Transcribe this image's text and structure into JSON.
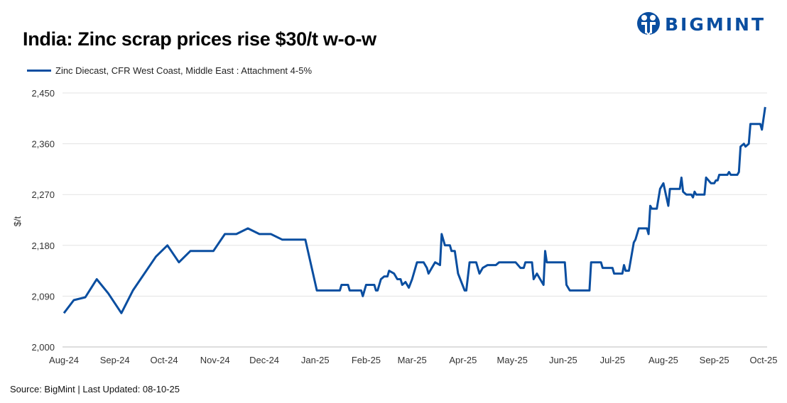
{
  "brand": {
    "name": "BIGMINT",
    "color": "#0a4ea0"
  },
  "footer": {
    "source": "Source: BigMint | Last Updated: 08-10-25"
  },
  "chart_data": {
    "type": "line",
    "title": "India: Zinc scrap prices rise $30/t w-o-w",
    "ylabel": "$/t",
    "xlabel": "",
    "ylim": [
      2000,
      2450
    ],
    "yticks": [
      2000,
      2090,
      2180,
      2270,
      2360,
      2450
    ],
    "ytick_labels": [
      "2,000",
      "2,090",
      "2,180",
      "2,270",
      "2,360",
      "2,450"
    ],
    "xlim": [
      "2024-08-01",
      "2025-10-01"
    ],
    "xticks": [
      "2024-08-01",
      "2024-09-01",
      "2024-10-01",
      "2024-11-01",
      "2024-12-01",
      "2025-01-01",
      "2025-02-01",
      "2025-03-01",
      "2025-04-01",
      "2025-05-01",
      "2025-06-01",
      "2025-07-01",
      "2025-08-01",
      "2025-09-01",
      "2025-10-01"
    ],
    "xtick_labels": [
      "Aug-24",
      "Sep-24",
      "Oct-24",
      "Nov-24",
      "Dec-24",
      "Jan-25",
      "Feb-25",
      "Mar-25",
      "Apr-25",
      "May-25",
      "Jun-25",
      "Jul-25",
      "Aug-25",
      "Sep-25",
      "Oct-25"
    ],
    "grid": "horizontal",
    "legend_position": "top-left",
    "series": [
      {
        "name": "Zinc Diecast, CFR West Coast, Middle East : Attachment 4-5%",
        "color": "#0a4ea0",
        "points": [
          [
            "2024-08-01",
            2060
          ],
          [
            "2024-08-07",
            2083
          ],
          [
            "2024-08-14",
            2088
          ],
          [
            "2024-08-21",
            2120
          ],
          [
            "2024-08-28",
            2095
          ],
          [
            "2024-09-05",
            2060
          ],
          [
            "2024-09-12",
            2100
          ],
          [
            "2024-09-26",
            2160
          ],
          [
            "2024-10-03",
            2180
          ],
          [
            "2024-10-10",
            2150
          ],
          [
            "2024-10-17",
            2170
          ],
          [
            "2024-10-31",
            2170
          ],
          [
            "2024-11-07",
            2200
          ],
          [
            "2024-11-14",
            2200
          ],
          [
            "2024-11-21",
            2210
          ],
          [
            "2024-11-28",
            2200
          ],
          [
            "2024-12-05",
            2200
          ],
          [
            "2024-12-12",
            2190
          ],
          [
            "2024-12-26",
            2190
          ],
          [
            "2025-01-02",
            2100
          ],
          [
            "2025-01-16",
            2100
          ],
          [
            "2025-01-17",
            2110
          ],
          [
            "2025-01-21",
            2110
          ],
          [
            "2025-01-22",
            2100
          ],
          [
            "2025-01-29",
            2100
          ],
          [
            "2025-01-30",
            2090
          ],
          [
            "2025-02-01",
            2110
          ],
          [
            "2025-02-06",
            2110
          ],
          [
            "2025-02-07",
            2100
          ],
          [
            "2025-02-08",
            2100
          ],
          [
            "2025-02-10",
            2120
          ],
          [
            "2025-02-12",
            2125
          ],
          [
            "2025-02-14",
            2125
          ],
          [
            "2025-02-15",
            2135
          ],
          [
            "2025-02-18",
            2130
          ],
          [
            "2025-02-20",
            2120
          ],
          [
            "2025-02-22",
            2120
          ],
          [
            "2025-02-23",
            2110
          ],
          [
            "2025-02-25",
            2115
          ],
          [
            "2025-02-27",
            2105
          ],
          [
            "2025-03-01",
            2120
          ],
          [
            "2025-03-04",
            2150
          ],
          [
            "2025-03-08",
            2150
          ],
          [
            "2025-03-10",
            2140
          ],
          [
            "2025-03-11",
            2130
          ],
          [
            "2025-03-13",
            2140
          ],
          [
            "2025-03-15",
            2150
          ],
          [
            "2025-03-18",
            2145
          ],
          [
            "2025-03-19",
            2200
          ],
          [
            "2025-03-21",
            2180
          ],
          [
            "2025-03-24",
            2180
          ],
          [
            "2025-03-25",
            2170
          ],
          [
            "2025-03-27",
            2170
          ],
          [
            "2025-03-29",
            2130
          ],
          [
            "2025-04-02",
            2100
          ],
          [
            "2025-04-03",
            2100
          ],
          [
            "2025-04-05",
            2150
          ],
          [
            "2025-04-09",
            2150
          ],
          [
            "2025-04-11",
            2130
          ],
          [
            "2025-04-13",
            2140
          ],
          [
            "2025-04-16",
            2145
          ],
          [
            "2025-04-21",
            2145
          ],
          [
            "2025-04-23",
            2150
          ],
          [
            "2025-05-03",
            2150
          ],
          [
            "2025-05-06",
            2140
          ],
          [
            "2025-05-08",
            2140
          ],
          [
            "2025-05-09",
            2150
          ],
          [
            "2025-05-13",
            2150
          ],
          [
            "2025-05-14",
            2120
          ],
          [
            "2025-05-16",
            2130
          ],
          [
            "2025-05-18",
            2120
          ],
          [
            "2025-05-20",
            2110
          ],
          [
            "2025-05-21",
            2170
          ],
          [
            "2025-05-22",
            2150
          ],
          [
            "2025-06-02",
            2150
          ],
          [
            "2025-06-03",
            2110
          ],
          [
            "2025-06-05",
            2100
          ],
          [
            "2025-06-17",
            2100
          ],
          [
            "2025-06-18",
            2150
          ],
          [
            "2025-06-24",
            2150
          ],
          [
            "2025-06-25",
            2140
          ],
          [
            "2025-07-01",
            2140
          ],
          [
            "2025-07-02",
            2130
          ],
          [
            "2025-07-07",
            2130
          ],
          [
            "2025-07-08",
            2145
          ],
          [
            "2025-07-09",
            2135
          ],
          [
            "2025-07-11",
            2135
          ],
          [
            "2025-07-14",
            2185
          ],
          [
            "2025-07-15",
            2190
          ],
          [
            "2025-07-17",
            2210
          ],
          [
            "2025-07-22",
            2210
          ],
          [
            "2025-07-23",
            2200
          ],
          [
            "2025-07-24",
            2250
          ],
          [
            "2025-07-25",
            2245
          ],
          [
            "2025-07-28",
            2245
          ],
          [
            "2025-07-30",
            2280
          ],
          [
            "2025-08-01",
            2290
          ],
          [
            "2025-08-04",
            2250
          ],
          [
            "2025-08-05",
            2280
          ],
          [
            "2025-08-11",
            2280
          ],
          [
            "2025-08-12",
            2300
          ],
          [
            "2025-08-13",
            2275
          ],
          [
            "2025-08-15",
            2270
          ],
          [
            "2025-08-18",
            2270
          ],
          [
            "2025-08-19",
            2265
          ],
          [
            "2025-08-20",
            2275
          ],
          [
            "2025-08-21",
            2270
          ],
          [
            "2025-08-26",
            2270
          ],
          [
            "2025-08-27",
            2300
          ],
          [
            "2025-08-30",
            2290
          ],
          [
            "2025-09-01",
            2290
          ],
          [
            "2025-09-02",
            2295
          ],
          [
            "2025-09-03",
            2295
          ],
          [
            "2025-09-04",
            2305
          ],
          [
            "2025-09-09",
            2305
          ],
          [
            "2025-09-10",
            2310
          ],
          [
            "2025-09-11",
            2305
          ],
          [
            "2025-09-15",
            2305
          ],
          [
            "2025-09-16",
            2310
          ],
          [
            "2025-09-17",
            2355
          ],
          [
            "2025-09-19",
            2360
          ],
          [
            "2025-09-20",
            2355
          ],
          [
            "2025-09-22",
            2360
          ],
          [
            "2025-09-23",
            2395
          ],
          [
            "2025-09-29",
            2395
          ],
          [
            "2025-09-30",
            2385
          ],
          [
            "2025-10-02",
            2425
          ]
        ]
      }
    ]
  }
}
